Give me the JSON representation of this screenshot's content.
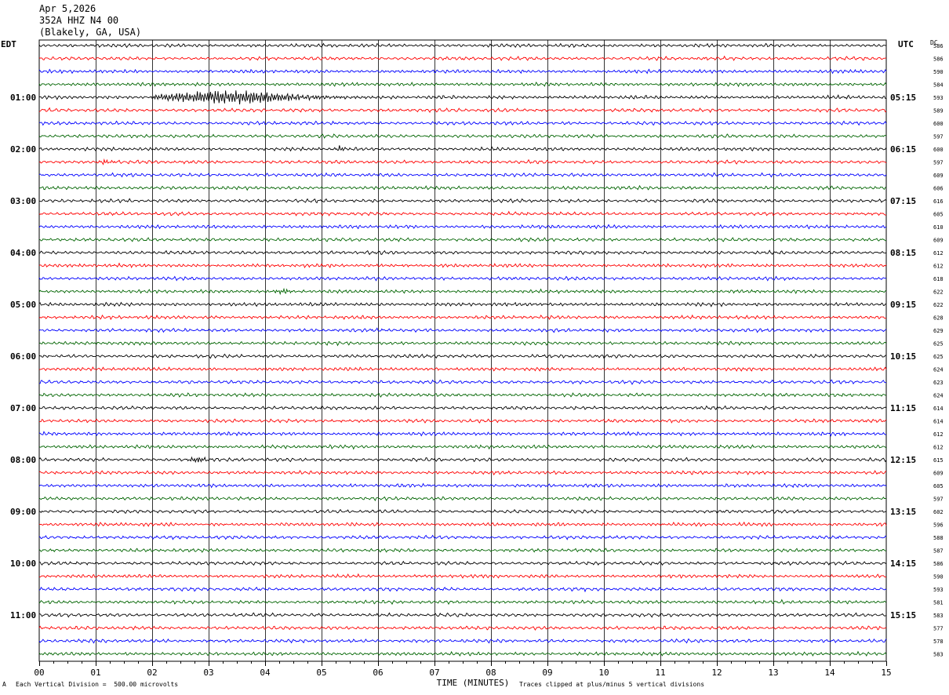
{
  "header": {
    "date": "Apr 5,2026",
    "station": "352A HHZ N4 00",
    "location": "(Blakely, GA, USA)"
  },
  "corner_labels": {
    "left": "EDT",
    "right": "UTC",
    "dc": "DC"
  },
  "footer": {
    "scale": "Each Vertical Division =  500.00 microvolts",
    "clip": "Traces clipped at plus/minus 5 vertical divisions",
    "mark": "A"
  },
  "chart_data": {
    "type": "line",
    "title": "",
    "xlabel": "TIME (MINUTES)",
    "ylabel": "",
    "xlim": [
      0,
      15
    ],
    "x_ticks": [
      "00",
      "01",
      "02",
      "03",
      "04",
      "05",
      "06",
      "07",
      "08",
      "09",
      "10",
      "11",
      "12",
      "13",
      "14",
      "15"
    ],
    "grid": true,
    "trace_colors": [
      "#000000",
      "#ff0000",
      "#0000ff",
      "#006400"
    ],
    "edt_hour_labels": [
      "01:00",
      "02:00",
      "03:00",
      "04:00",
      "05:00",
      "06:00",
      "07:00",
      "08:00",
      "09:00",
      "10:00",
      "11:00"
    ],
    "utc_hour_labels": [
      "05:15",
      "06:15",
      "07:15",
      "08:15",
      "09:15",
      "10:15",
      "11:15",
      "12:15",
      "13:15",
      "14:15",
      "15:15"
    ],
    "dc_values": [
      586,
      586,
      590,
      584,
      593,
      589,
      600,
      597,
      600,
      597,
      609,
      606,
      616,
      605,
      610,
      609,
      612,
      612,
      618,
      622,
      622,
      628,
      629,
      625,
      625,
      624,
      623,
      624,
      614,
      614,
      612,
      612,
      615,
      609,
      605,
      597,
      602,
      596,
      588,
      587,
      586,
      590,
      593,
      581,
      583,
      577,
      578,
      583
    ],
    "events": [
      {
        "trace": 4,
        "start_min": 2.0,
        "end_min": 6.0,
        "peak_min": 3.4,
        "amplitude_div": 3.0
      },
      {
        "trace": 9,
        "start_min": 0.9,
        "end_min": 1.4,
        "peak_min": 1.15,
        "amplitude_div": 1.0
      },
      {
        "trace": 8,
        "start_min": 5.2,
        "end_min": 5.6,
        "peak_min": 5.35,
        "amplitude_div": 1.0
      },
      {
        "trace": 19,
        "start_min": 4.1,
        "end_min": 4.6,
        "peak_min": 4.3,
        "amplitude_div": 1.0
      },
      {
        "trace": 32,
        "start_min": 2.6,
        "end_min": 3.1,
        "peak_min": 2.8,
        "amplitude_div": 1.2
      }
    ]
  }
}
